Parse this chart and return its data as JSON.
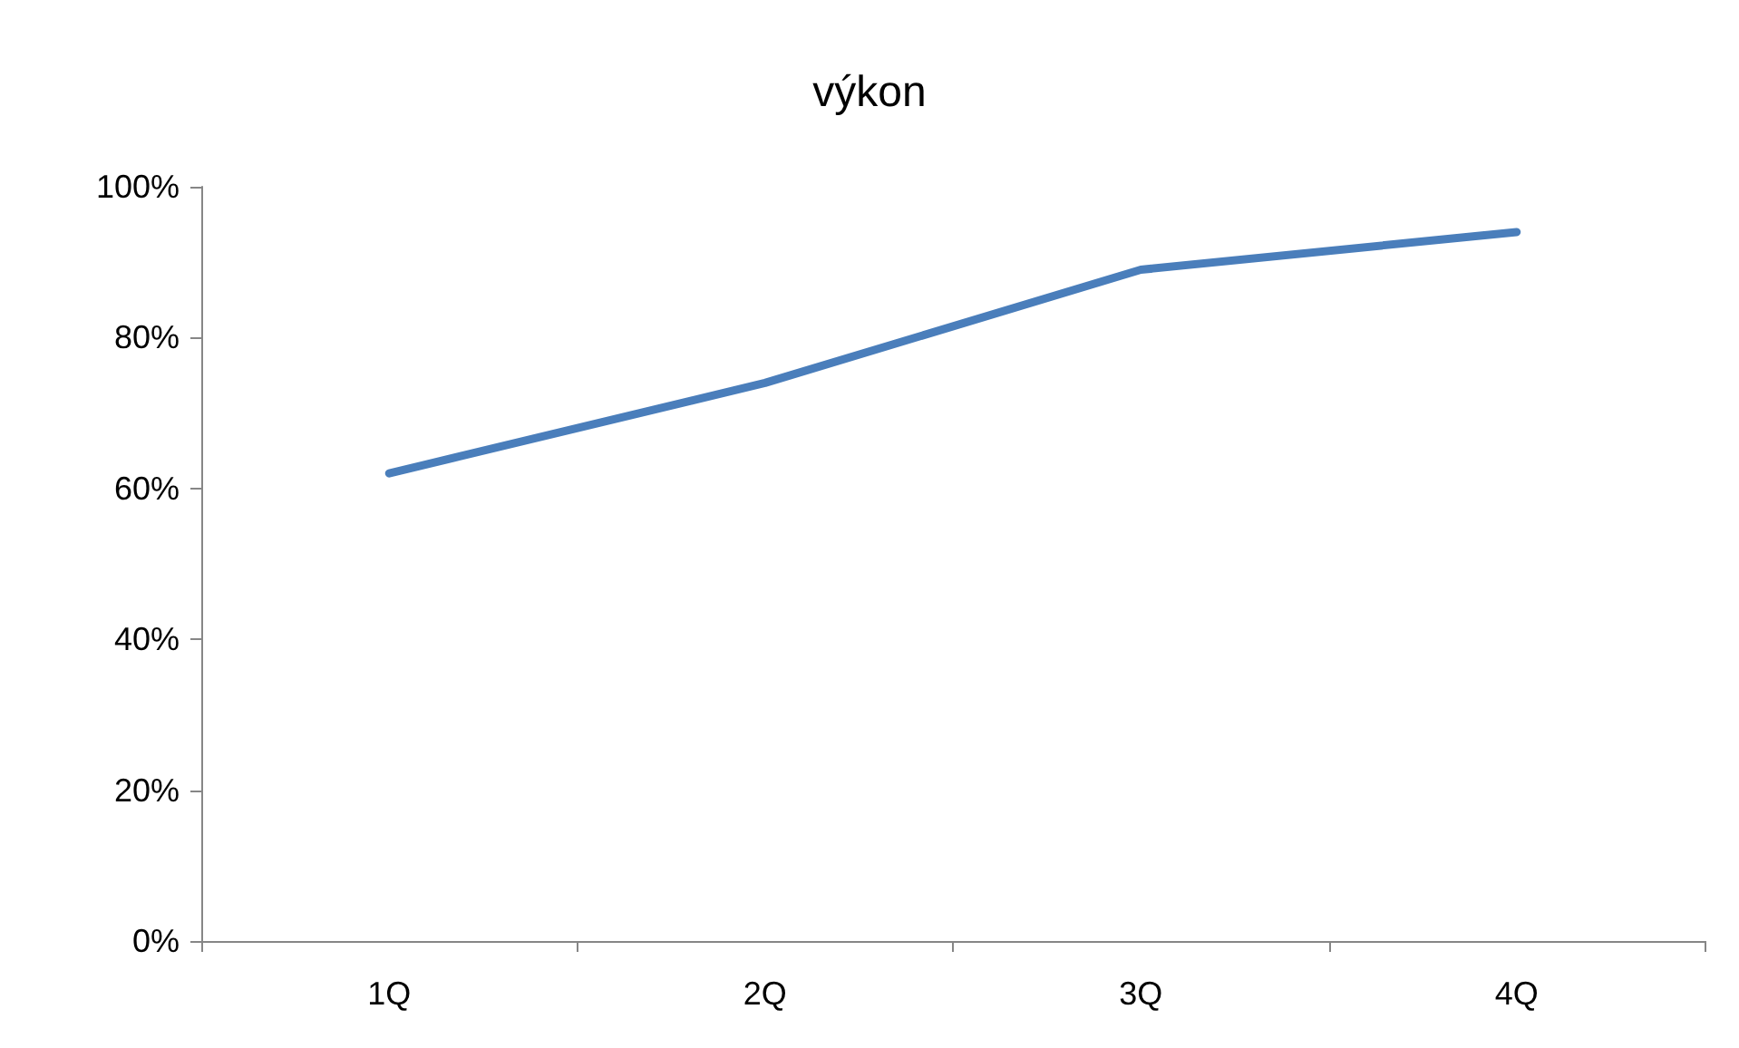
{
  "chart_data": {
    "type": "line",
    "title": "výkon",
    "categories": [
      "1Q",
      "2Q",
      "3Q",
      "4Q"
    ],
    "series": [
      {
        "color": "#4a7ebb",
        "values": [
          62,
          74,
          89,
          94
        ]
      }
    ],
    "ylim": [
      0,
      100
    ],
    "yticks": [
      {
        "value": 0,
        "label": "0%"
      },
      {
        "value": 20,
        "label": "20%"
      },
      {
        "value": 40,
        "label": "40%"
      },
      {
        "value": 60,
        "label": "60%"
      },
      {
        "value": 80,
        "label": "80%"
      },
      {
        "value": 100,
        "label": "100%"
      }
    ],
    "grid": false,
    "marker": "none",
    "line_style": "solid"
  }
}
